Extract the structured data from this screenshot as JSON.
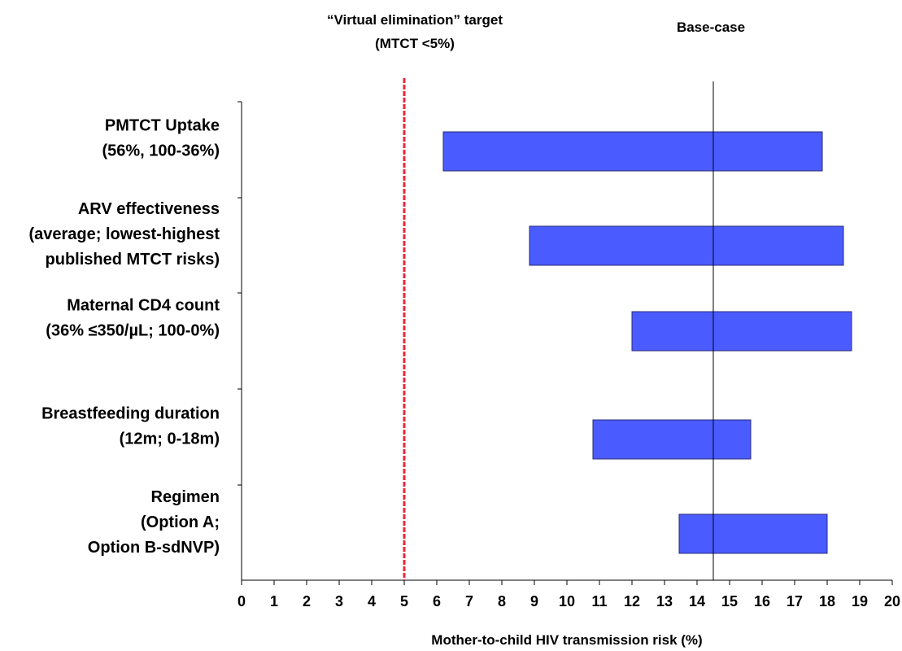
{
  "chart_data": {
    "type": "bar",
    "orientation": "horizontal",
    "subtype": "tornado",
    "xlabel": "Mother-to-child HIV transmission risk (%)",
    "xlim": [
      0,
      20
    ],
    "x_ticks": [
      "0",
      "1",
      "2",
      "3",
      "4",
      "5",
      "6",
      "7",
      "8",
      "9",
      "10",
      "11",
      "12",
      "13",
      "14",
      "15",
      "16",
      "17",
      "18",
      "19",
      "20"
    ],
    "grid": false,
    "categories": [
      {
        "label_lines": [
          "PMTCT Uptake",
          "(56%, 100-36%)"
        ],
        "low": 6.2,
        "high": 17.85
      },
      {
        "label_lines": [
          "ARV effectiveness",
          "(average; lowest-highest",
          "published MTCT risks)"
        ],
        "low": 8.85,
        "high": 18.5
      },
      {
        "label_lines": [
          "Maternal CD4 count",
          "(36% ≤350/µL; 100-0%)"
        ],
        "low": 12.0,
        "high": 18.75
      },
      {
        "label_lines": [
          "Breastfeeding duration",
          "(12m; 0-18m)"
        ],
        "low": 10.8,
        "high": 15.65
      },
      {
        "label_lines": [
          "Regimen",
          "(Option A;",
          "Option B-sdNVP)"
        ],
        "low": 13.45,
        "high": 18.0
      }
    ],
    "baseline": {
      "value": 14.5,
      "label": "Base-case"
    },
    "target": {
      "value": 5,
      "label_lines": [
        "“Virtual elimination” target",
        "(MTCT <5%)"
      ]
    },
    "colors": {
      "bar_fill": "#4a5cff",
      "bar_stroke": "#2a2a7a",
      "target_line": "#e8283c",
      "axis": "#000000"
    }
  }
}
